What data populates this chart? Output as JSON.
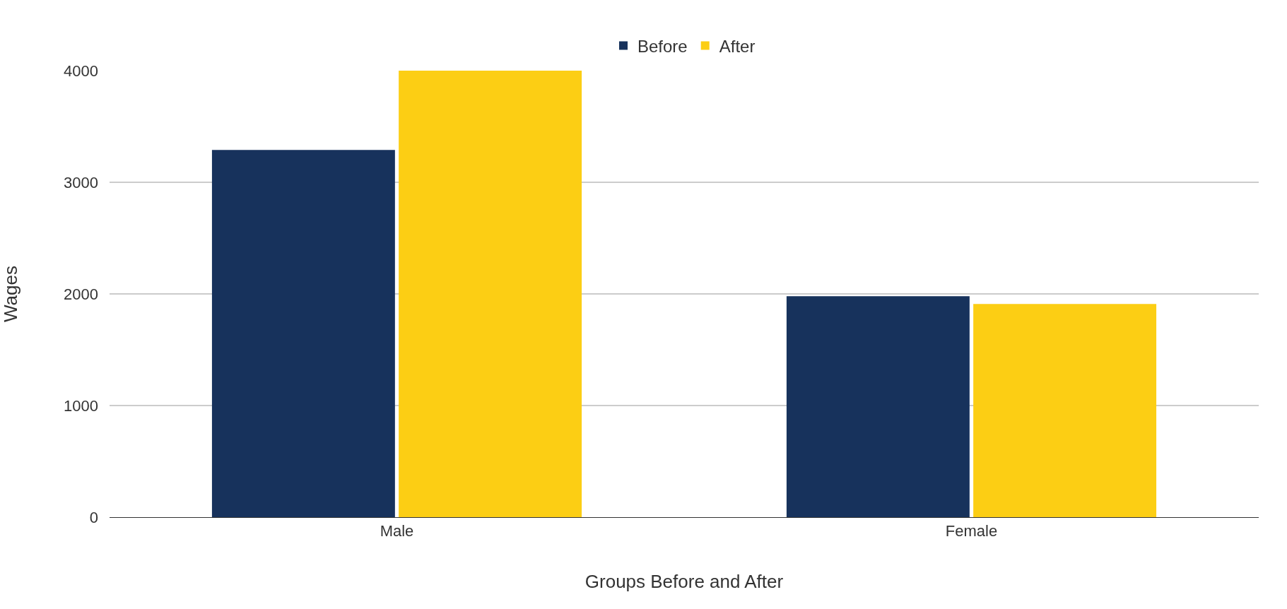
{
  "chart_data": {
    "type": "bar",
    "xlabel": "Groups Before and After",
    "ylabel": "Wages",
    "categories": [
      "Male",
      "Female"
    ],
    "series": [
      {
        "name": "Before",
        "color": "#17325c",
        "values": [
          3290,
          1980
        ]
      },
      {
        "name": "After",
        "color": "#fcce14",
        "values": [
          4000,
          1910
        ]
      }
    ],
    "ylim": [
      0,
      4000
    ],
    "yticks": [
      0,
      1000,
      2000,
      3000,
      4000
    ],
    "grid": "y",
    "legend": "top"
  }
}
